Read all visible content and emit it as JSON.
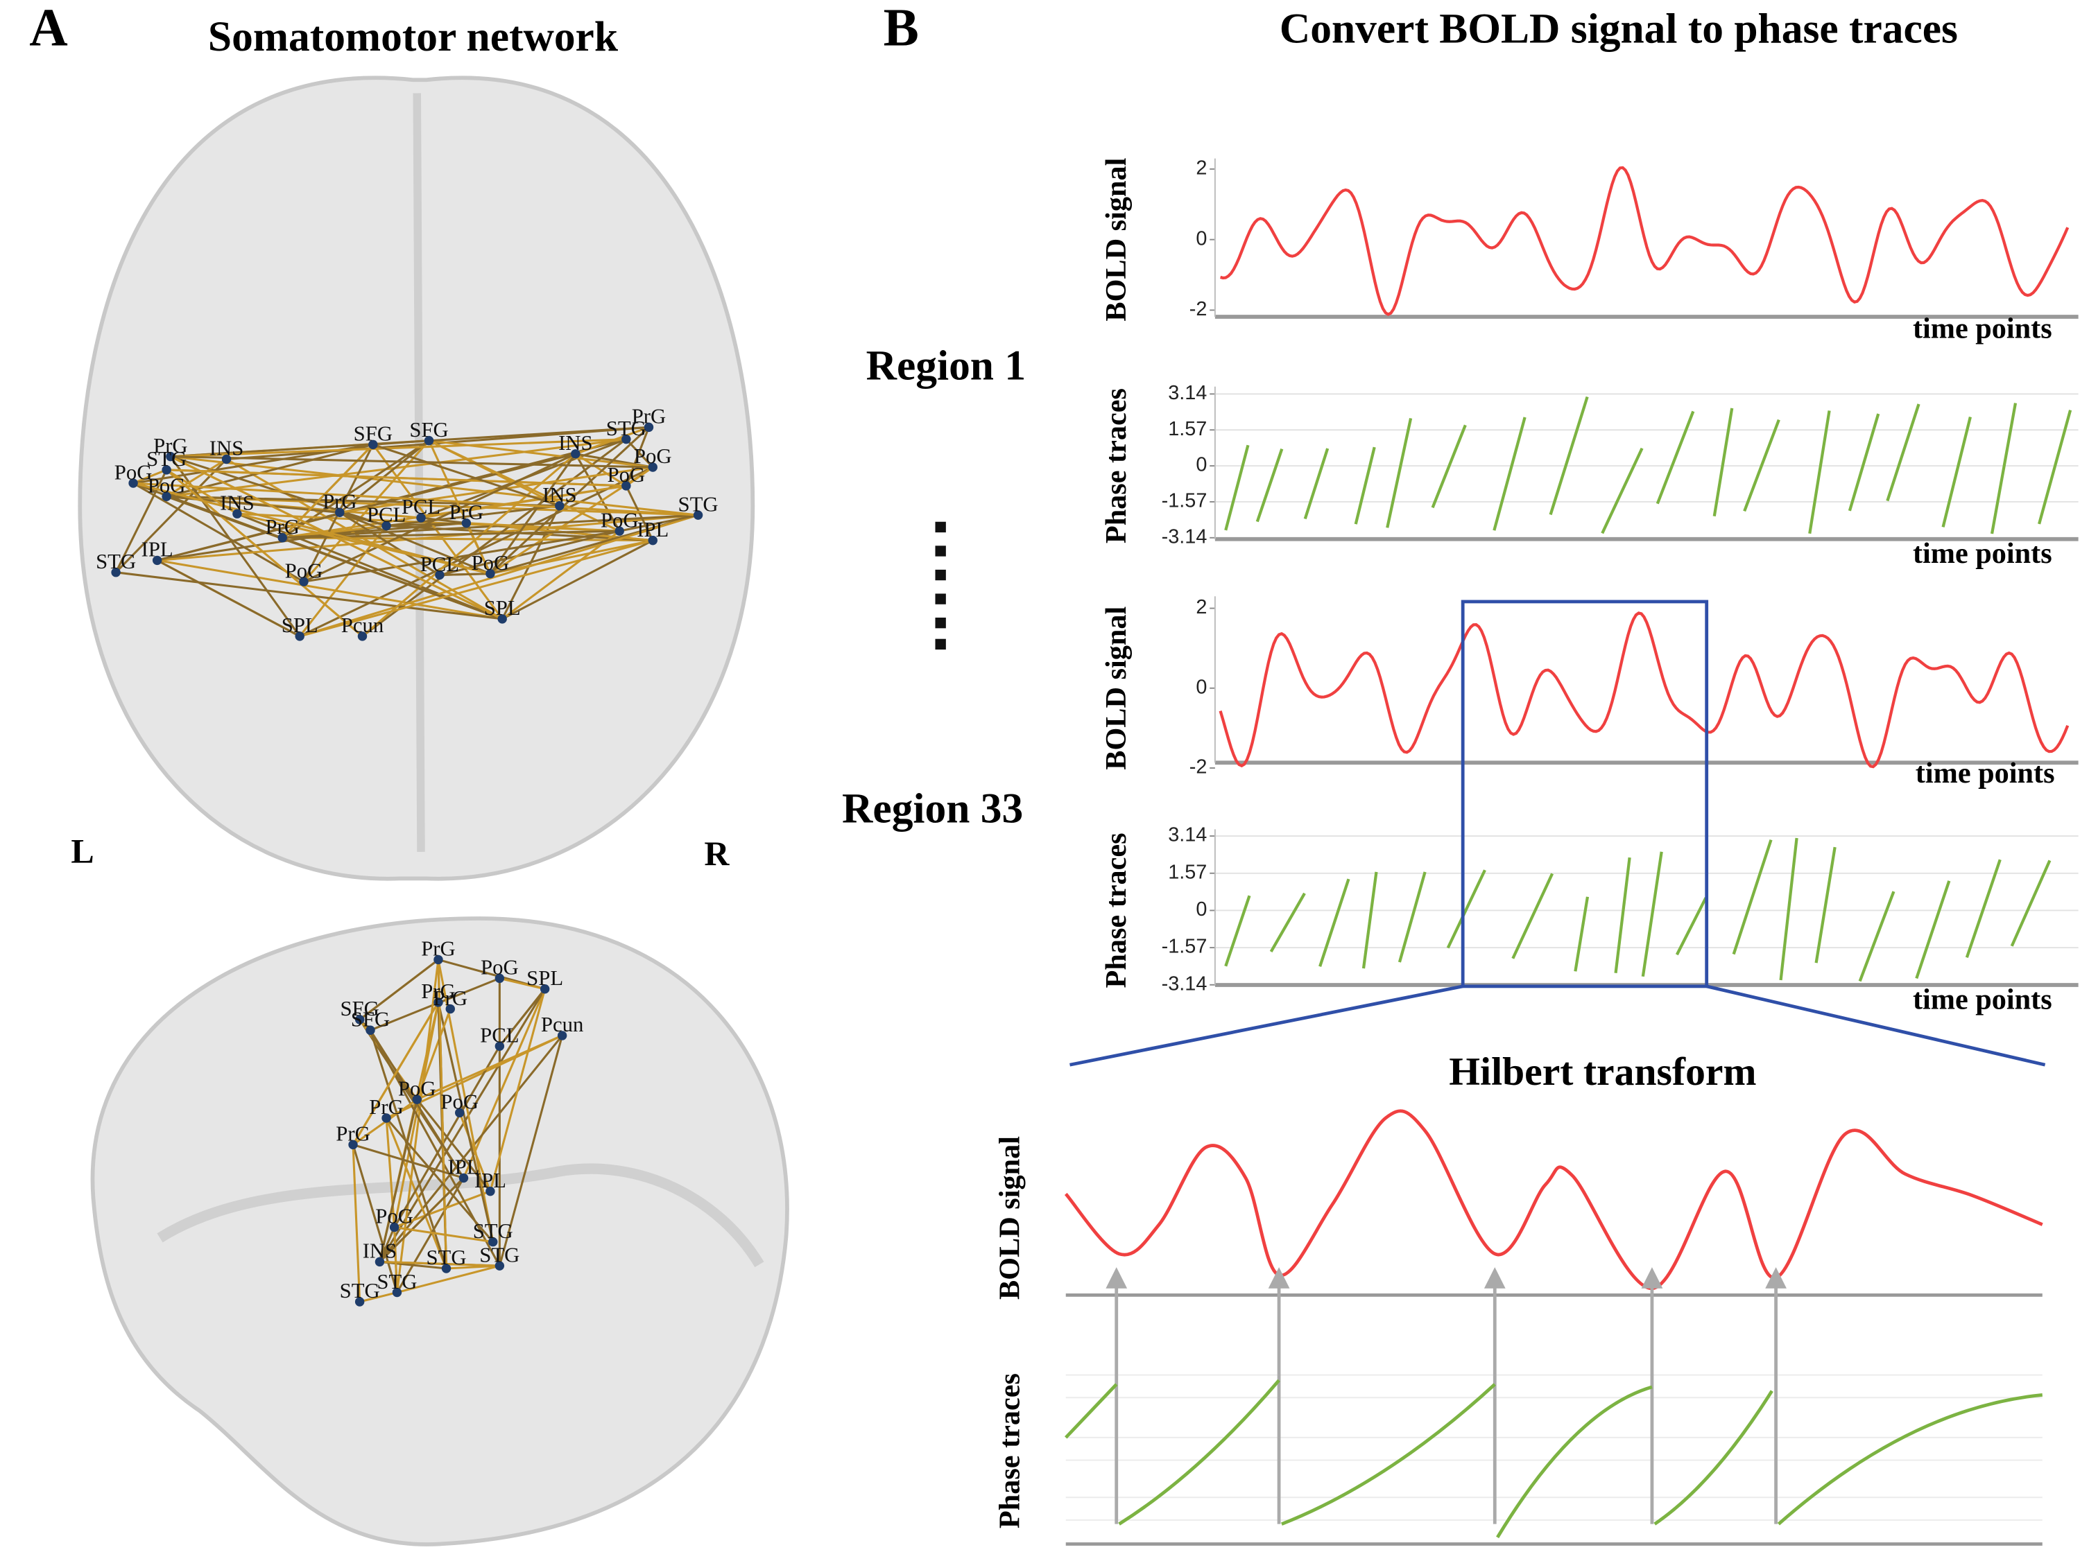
{
  "panel_a": {
    "letter": "A",
    "title": "Somatomotor network",
    "left_label": "L",
    "right_label": "R",
    "axial_nodes": [
      "PrG",
      "INS",
      "STG",
      "PoG",
      "PoG",
      "INS",
      "SFG",
      "SFG",
      "PrG",
      "STG",
      "INS",
      "PoG",
      "PoG",
      "PrG",
      "PCL",
      "PCL",
      "PrG",
      "INS",
      "STG",
      "PoG",
      "IPL",
      "PrG",
      "IPL",
      "STG",
      "PoG",
      "PCL",
      "PoG",
      "SPL",
      "SPL",
      "Pcun"
    ],
    "sagittal_nodes": [
      "PrG",
      "PoG",
      "SPL",
      "PrG",
      "SFG",
      "SFG",
      "PrG",
      "PCL",
      "Pcun",
      "PoG",
      "PoG",
      "PrG",
      "PrG",
      "IPL",
      "IPL",
      "PoG",
      "STG",
      "INS",
      "STG",
      "STG",
      "STG",
      "STG"
    ]
  },
  "panel_b": {
    "letter": "B",
    "title": "Convert BOLD signal to phase traces",
    "regions": [
      "Region 1",
      "Region 33"
    ],
    "plots": [
      {
        "ylabel": "BOLD signal",
        "yticks": [
          2,
          0,
          -2
        ],
        "xlabel": "time points"
      },
      {
        "ylabel": "Phase traces",
        "yticks": [
          3.14,
          1.57,
          0,
          -1.57,
          -3.14
        ],
        "xlabel": "time points"
      },
      {
        "ylabel": "BOLD signal",
        "yticks": [
          2,
          0,
          -2
        ],
        "xlabel": "time points"
      },
      {
        "ylabel": "Phase traces",
        "yticks": [
          3.14,
          1.57,
          0,
          -1.57,
          -3.14
        ],
        "xlabel": "time points"
      }
    ],
    "zoom": {
      "title": "Hilbert transform",
      "ylabels": [
        "BOLD signal",
        "Phase traces"
      ]
    }
  }
}
